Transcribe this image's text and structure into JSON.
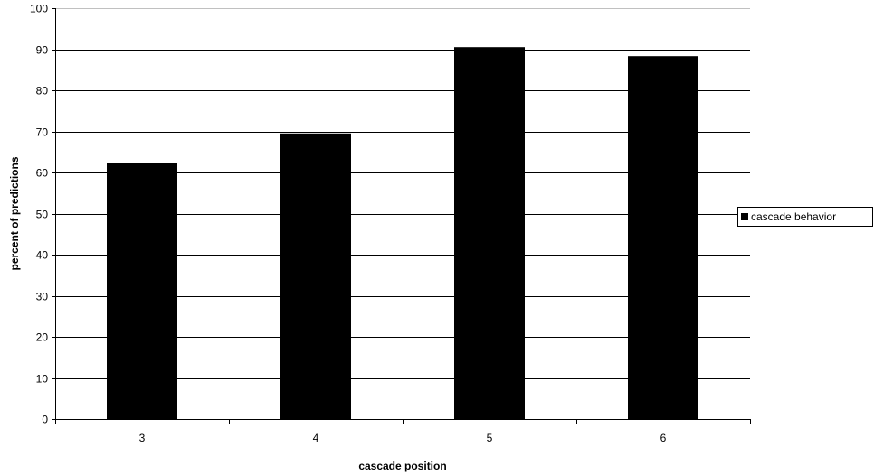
{
  "chart_data": {
    "type": "bar",
    "categories": [
      "3",
      "4",
      "5",
      "6"
    ],
    "series": [
      {
        "name": "cascade behavior",
        "values": [
          62.2,
          69.5,
          90.5,
          88.3
        ]
      }
    ],
    "title": "",
    "xlabel": "cascade position",
    "ylabel": "percent of predictions",
    "ylim": [
      0,
      100
    ],
    "yticks": [
      "0",
      "10",
      "20",
      "30",
      "40",
      "50",
      "60",
      "70",
      "80",
      "90",
      "100"
    ],
    "grid": true,
    "legend_position": "right",
    "colors": {
      "bar": "#000000",
      "gridline": "#000000",
      "top_gridline": "#c0c0c0",
      "axis": "#000000"
    }
  }
}
